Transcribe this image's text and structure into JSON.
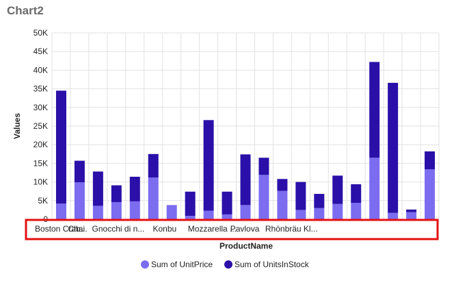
{
  "title": "Chart2",
  "colors": {
    "unitprice": "#7b6cf0",
    "unitsinstock": "#2a10a8",
    "highlight": "#e31010",
    "grid": "#e2e2e2",
    "text": "#222222"
  },
  "chart_data": {
    "type": "bar",
    "stacked": true,
    "xlabel": "ProductName",
    "ylabel": "Values",
    "ylim": [
      0,
      50000
    ],
    "yticks": [
      "0",
      "5K",
      "10K",
      "15K",
      "20K",
      "25K",
      "30K",
      "35K",
      "40K",
      "45K",
      "50K"
    ],
    "grid": true,
    "legend_position": "bottom",
    "visible_category_labels": [
      "Boston Crab...",
      "Chai",
      "Gnocchi di n...",
      "Konbu",
      "Mozzarella ...",
      "Pavlova",
      "Rhönbräu Kl..."
    ],
    "series": [
      {
        "name": "Sum of UnitPrice",
        "values": [
          4200,
          9900,
          3600,
          4600,
          4800,
          11200,
          3800,
          900,
          2300,
          1300,
          3800,
          11900,
          7600,
          2500,
          3000,
          4100,
          4400,
          16500,
          1700,
          1900,
          13400
        ]
      },
      {
        "name": "Sum of UnitsInStock",
        "values": [
          30300,
          5800,
          9200,
          4500,
          6600,
          6300,
          0,
          6500,
          24300,
          6100,
          13600,
          4600,
          3200,
          7500,
          3800,
          7600,
          5000,
          25700,
          34900,
          700,
          4800
        ]
      }
    ]
  }
}
